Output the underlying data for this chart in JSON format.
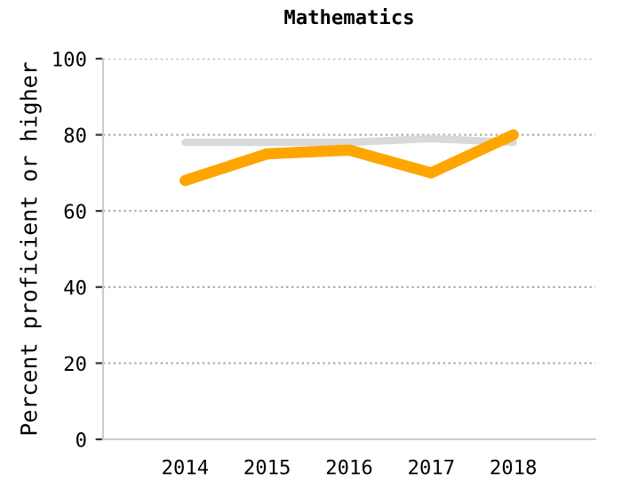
{
  "chart_data": {
    "type": "line",
    "title": "Mathematics",
    "ylabel": "Percent proficient or higher",
    "categories": [
      "2014",
      "2015",
      "2016",
      "2017",
      "2018"
    ],
    "series": [
      {
        "color": "#d9d9d9",
        "values": [
          78,
          78,
          78,
          79,
          78
        ]
      },
      {
        "color": "#ffa500",
        "values": [
          68,
          75,
          76,
          70,
          80
        ]
      }
    ],
    "ylim": [
      0,
      100
    ],
    "yticks": [
      0,
      20,
      40,
      60,
      80,
      100
    ],
    "grid": "y",
    "legend": false,
    "marker": "none",
    "line_style": "solid"
  }
}
